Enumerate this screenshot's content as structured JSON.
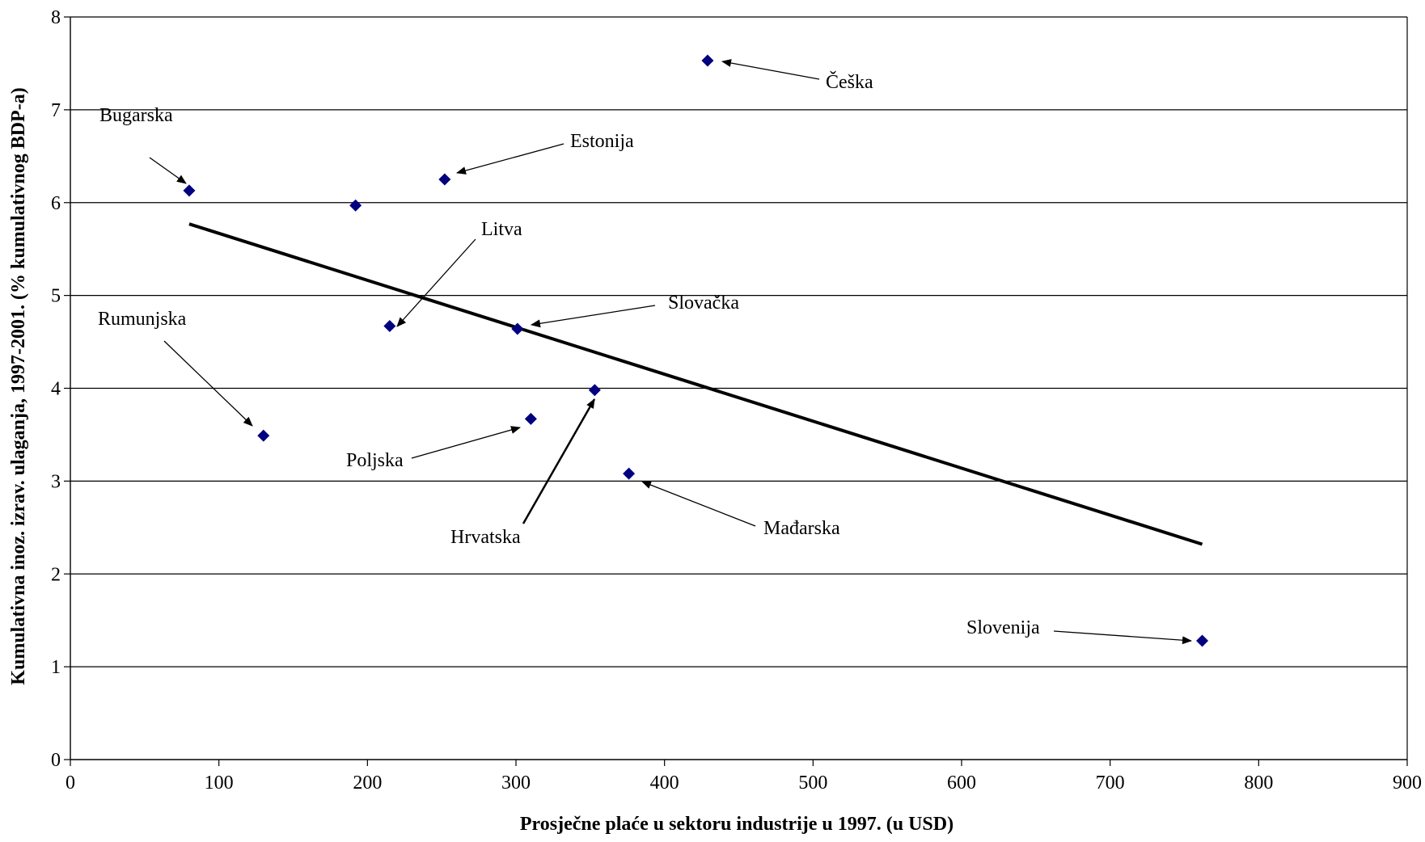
{
  "chart_data": {
    "type": "scatter",
    "title": "",
    "xlabel": "Prosječne plaće u sektoru industrije u 1997. (u USD)",
    "ylabel": "Kumulativna inoz. izrav.  ulaganja, 1997-2001. (% kumulativnog BDP-a)",
    "xlim": [
      0,
      900
    ],
    "ylim": [
      0,
      8
    ],
    "x_ticks": [
      "0",
      "100",
      "200",
      "300",
      "400",
      "500",
      "600",
      "700",
      "800",
      "900"
    ],
    "y_ticks": [
      "0",
      "1",
      "2",
      "3",
      "4",
      "5",
      "6",
      "7",
      "8"
    ],
    "grid": "horizontal",
    "marker_color": "#000080",
    "trendline_color": "#000000",
    "points": [
      {
        "label": "Bugarska",
        "x": 80,
        "y": 6.13
      },
      {
        "label": "",
        "x": 192,
        "y": 5.97
      },
      {
        "label": "Estonija",
        "x": 252,
        "y": 6.25
      },
      {
        "label": "Češka",
        "x": 429,
        "y": 7.53
      },
      {
        "label": "Litva",
        "x": 215,
        "y": 4.67
      },
      {
        "label": "Slovačka",
        "x": 301,
        "y": 4.64
      },
      {
        "label": "Rumunjska",
        "x": 130,
        "y": 3.49
      },
      {
        "label": "Poljska",
        "x": 310,
        "y": 3.67
      },
      {
        "label": "Hrvatska",
        "x": 353,
        "y": 3.98
      },
      {
        "label": "Mađarska",
        "x": 376,
        "y": 3.08
      },
      {
        "label": "Slovenija",
        "x": 762,
        "y": 1.28
      }
    ],
    "trendline": {
      "x": [
        80,
        762
      ],
      "y": [
        5.77,
        2.32
      ]
    }
  }
}
